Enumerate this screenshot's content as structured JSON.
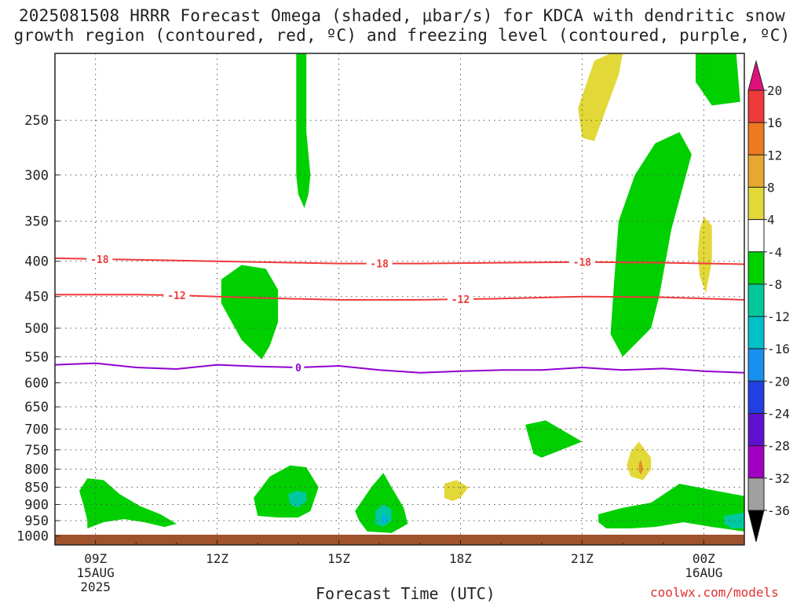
{
  "title_line1": "2025081508 HRRR Forecast Omega (shaded, μbar/s) for KDCA with dendritic snow",
  "title_line2": "growth region (contoured, red, ºC) and freezing level (contoured, purple, ºC)",
  "x_axis_title": "Forecast Time (UTC)",
  "credit": "coolwx.com/models",
  "colors": {
    "green": "#00d000",
    "teal": "#00c8a0",
    "cyan": "#00b4e0",
    "yellow": "#e2d838",
    "orange": "#e88a28",
    "red_contour": "#ee3a3a",
    "purple_contour": "#9000d0",
    "ground": "#a0522d"
  },
  "chart_data": {
    "type": "contour",
    "x_hours": [
      8,
      9,
      10,
      11,
      12,
      13,
      14,
      15,
      16,
      17,
      18,
      19,
      20,
      21,
      22,
      23,
      24,
      25
    ],
    "x_ticks": [
      {
        "hour": 9,
        "label": "09Z",
        "sub1": "15AUG",
        "sub2": "2025"
      },
      {
        "hour": 12,
        "label": "12Z",
        "sub1": "",
        "sub2": ""
      },
      {
        "hour": 15,
        "label": "15Z",
        "sub1": "",
        "sub2": ""
      },
      {
        "hour": 18,
        "label": "18Z",
        "sub1": "",
        "sub2": ""
      },
      {
        "hour": 21,
        "label": "21Z",
        "sub1": "",
        "sub2": ""
      },
      {
        "hour": 24,
        "label": "00Z",
        "sub1": "16AUG",
        "sub2": ""
      }
    ],
    "y_axis": {
      "scale": "log",
      "top_hPa": 200,
      "bottom_hPa": 1030
    },
    "y_ticks": [
      250,
      300,
      350,
      400,
      450,
      500,
      550,
      600,
      650,
      700,
      750,
      800,
      850,
      900,
      950,
      1000
    ],
    "colorbar": {
      "labels": [
        "20",
        "16",
        "12",
        "8",
        "4",
        "-4",
        "-8",
        "-12",
        "-16",
        "-20",
        "-24",
        "-28",
        "-32",
        "-36"
      ],
      "segments": [
        {
          "color": "#ee3a3a"
        },
        {
          "color": "#ee7a20"
        },
        {
          "color": "#e6a830"
        },
        {
          "color": "#e2d838"
        },
        {
          "color": "#ffffff"
        },
        {
          "color": "#00d000"
        },
        {
          "color": "#00c89a"
        },
        {
          "color": "#00c0c8"
        },
        {
          "color": "#1890ee"
        },
        {
          "color": "#2040e0"
        },
        {
          "color": "#6010d0"
        },
        {
          "color": "#a000c0"
        },
        {
          "color": "#a0a0a0"
        }
      ],
      "top_color": "#e0107a",
      "bottom_color": "#000000"
    },
    "contours": [
      {
        "value": "-18",
        "color": "#ee3a3a",
        "points": [
          [
            8.0,
            396
          ],
          [
            9.0,
            397
          ],
          [
            11.0,
            399
          ],
          [
            13.0,
            401
          ],
          [
            15.0,
            403
          ],
          [
            17.0,
            403
          ],
          [
            19.0,
            402
          ],
          [
            21.0,
            401
          ],
          [
            23.0,
            402
          ],
          [
            25.0,
            404
          ]
        ],
        "labels_at": [
          9.1,
          16.0,
          21.0
        ]
      },
      {
        "value": "-12",
        "color": "#ee3a3a",
        "points": [
          [
            8.0,
            447
          ],
          [
            9.0,
            447
          ],
          [
            10.0,
            447
          ],
          [
            11.0,
            448
          ],
          [
            13.0,
            452
          ],
          [
            15.0,
            455
          ],
          [
            17.0,
            455
          ],
          [
            19.0,
            453
          ],
          [
            21.0,
            450
          ],
          [
            23.0,
            451
          ],
          [
            25.0,
            455
          ]
        ],
        "labels_at": [
          11.0,
          18.0
        ]
      },
      {
        "value": "0",
        "color": "#9000d0",
        "points": [
          [
            8.0,
            565
          ],
          [
            9.0,
            562
          ],
          [
            10.0,
            570
          ],
          [
            11.0,
            573
          ],
          [
            12.0,
            565
          ],
          [
            13.0,
            568
          ],
          [
            14.0,
            570
          ],
          [
            15.0,
            567
          ],
          [
            16.0,
            575
          ],
          [
            17.0,
            580
          ],
          [
            18.0,
            577
          ],
          [
            19.0,
            575
          ],
          [
            20.0,
            575
          ],
          [
            21.0,
            570
          ],
          [
            22.0,
            575
          ],
          [
            23.0,
            572
          ],
          [
            24.0,
            577
          ],
          [
            25.0,
            580
          ]
        ],
        "labels_at": [
          14.0
        ]
      }
    ],
    "shaded_regions": [
      {
        "color": "#00d000",
        "points": [
          [
            13.95,
            200
          ],
          [
            14.2,
            200
          ],
          [
            14.2,
            260
          ],
          [
            14.3,
            300
          ],
          [
            14.25,
            320
          ],
          [
            14.15,
            335
          ],
          [
            14.0,
            320
          ],
          [
            13.95,
            300
          ]
        ]
      },
      {
        "color": "#00d000",
        "points": [
          [
            12.1,
            425
          ],
          [
            12.6,
            405
          ],
          [
            13.2,
            410
          ],
          [
            13.5,
            440
          ],
          [
            13.5,
            490
          ],
          [
            13.3,
            530
          ],
          [
            13.1,
            555
          ],
          [
            12.6,
            520
          ],
          [
            12.1,
            460
          ]
        ]
      },
      {
        "color": "#00d000",
        "points": [
          [
            23.8,
            200
          ],
          [
            24.8,
            200
          ],
          [
            24.9,
            235
          ],
          [
            24.2,
            238
          ],
          [
            23.8,
            220
          ]
        ]
      },
      {
        "color": "#00d000",
        "points": [
          [
            22.8,
            270
          ],
          [
            23.4,
            260
          ],
          [
            23.7,
            280
          ],
          [
            23.2,
            360
          ],
          [
            22.9,
            450
          ],
          [
            22.7,
            500
          ],
          [
            22.0,
            550
          ],
          [
            21.7,
            510
          ],
          [
            21.8,
            420
          ],
          [
            21.9,
            350
          ],
          [
            22.3,
            300
          ]
        ]
      },
      {
        "color": "#00d000",
        "points": [
          [
            19.6,
            690
          ],
          [
            20.1,
            680
          ],
          [
            21.0,
            730
          ],
          [
            20.0,
            770
          ],
          [
            19.8,
            760
          ]
        ]
      },
      {
        "color": "#00d000",
        "points": [
          [
            8.6,
            860
          ],
          [
            8.8,
            825
          ],
          [
            9.2,
            830
          ],
          [
            9.6,
            870
          ],
          [
            10.1,
            905
          ],
          [
            10.6,
            930
          ],
          [
            11.0,
            960
          ],
          [
            10.7,
            970
          ],
          [
            10.2,
            955
          ],
          [
            9.7,
            945
          ],
          [
            9.2,
            955
          ],
          [
            8.8,
            975
          ],
          [
            8.8,
            950
          ],
          [
            8.7,
            900
          ]
        ]
      },
      {
        "color": "#00d000",
        "points": [
          [
            12.9,
            880
          ],
          [
            13.3,
            820
          ],
          [
            13.8,
            790
          ],
          [
            14.2,
            795
          ],
          [
            14.5,
            850
          ],
          [
            14.3,
            920
          ],
          [
            14.0,
            940
          ],
          [
            13.5,
            940
          ],
          [
            13.0,
            935
          ]
        ]
      },
      {
        "color": "#00d000",
        "points": [
          [
            15.4,
            920
          ],
          [
            15.8,
            850
          ],
          [
            16.1,
            810
          ],
          [
            16.3,
            850
          ],
          [
            16.6,
            910
          ],
          [
            16.7,
            960
          ],
          [
            16.3,
            990
          ],
          [
            15.7,
            985
          ],
          [
            15.5,
            950
          ]
        ]
      },
      {
        "color": "#00d000",
        "points": [
          [
            21.4,
            930
          ],
          [
            22.0,
            910
          ],
          [
            22.7,
            895
          ],
          [
            23.4,
            840
          ],
          [
            24.3,
            860
          ],
          [
            25.0,
            875
          ],
          [
            25.0,
            985
          ],
          [
            24.2,
            970
          ],
          [
            23.5,
            955
          ],
          [
            22.8,
            970
          ],
          [
            22.2,
            975
          ],
          [
            21.6,
            975
          ],
          [
            21.4,
            955
          ]
        ]
      },
      {
        "color": "#00c8a0",
        "points": [
          [
            13.75,
            870
          ],
          [
            13.95,
            860
          ],
          [
            14.2,
            865
          ],
          [
            14.2,
            890
          ],
          [
            14.0,
            910
          ],
          [
            13.8,
            900
          ]
        ]
      },
      {
        "color": "#00c8a0",
        "points": [
          [
            15.9,
            920
          ],
          [
            16.1,
            900
          ],
          [
            16.3,
            915
          ],
          [
            16.3,
            950
          ],
          [
            16.1,
            970
          ],
          [
            15.9,
            960
          ]
        ]
      },
      {
        "color": "#00b4e0",
        "points": [
          [
            16.05,
            935
          ],
          [
            16.15,
            930
          ],
          [
            16.2,
            945
          ],
          [
            16.15,
            960
          ],
          [
            16.05,
            955
          ]
        ]
      },
      {
        "color": "#00c8a0",
        "points": [
          [
            24.5,
            935
          ],
          [
            25.0,
            925
          ],
          [
            25.0,
            975
          ],
          [
            24.7,
            975
          ],
          [
            24.5,
            960
          ]
        ]
      },
      {
        "color": "#e2d838",
        "points": [
          [
            21.3,
            205
          ],
          [
            21.7,
            200
          ],
          [
            22.0,
            200
          ],
          [
            21.9,
            215
          ],
          [
            21.6,
            240
          ],
          [
            21.3,
            268
          ],
          [
            21.0,
            265
          ],
          [
            20.9,
            240
          ]
        ]
      },
      {
        "color": "#e2d838",
        "points": [
          [
            24.0,
            345
          ],
          [
            24.2,
            355
          ],
          [
            24.2,
            400
          ],
          [
            24.05,
            445
          ],
          [
            23.9,
            420
          ],
          [
            23.85,
            390
          ],
          [
            23.9,
            360
          ]
        ]
      },
      {
        "color": "#e2d838",
        "points": [
          [
            22.2,
            755
          ],
          [
            22.4,
            730
          ],
          [
            22.7,
            770
          ],
          [
            22.7,
            800
          ],
          [
            22.5,
            830
          ],
          [
            22.2,
            820
          ],
          [
            22.1,
            790
          ]
        ]
      },
      {
        "color": "#e88a28",
        "points": [
          [
            22.4,
            785
          ],
          [
            22.45,
            775
          ],
          [
            22.5,
            800
          ],
          [
            22.45,
            815
          ],
          [
            22.4,
            805
          ]
        ]
      },
      {
        "color": "#e2d838",
        "points": [
          [
            17.6,
            840
          ],
          [
            17.9,
            830
          ],
          [
            18.2,
            850
          ],
          [
            18.0,
            880
          ],
          [
            17.8,
            890
          ],
          [
            17.6,
            880
          ]
        ]
      }
    ]
  }
}
